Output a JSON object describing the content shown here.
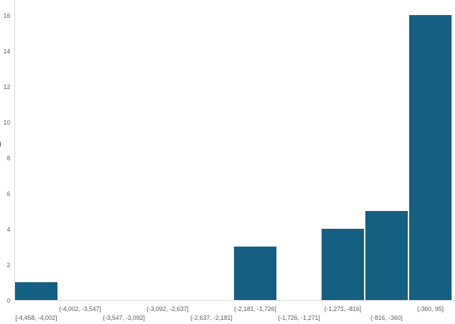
{
  "chart_data": {
    "type": "bar",
    "subtype": "histogram",
    "title": "",
    "xlabel": "",
    "ylabel": "",
    "y_axis_title_fragment": ")",
    "categories": [
      "[-4,458, -4,002]",
      "(-4,002, -3,547]",
      "(-3,547, -3,092]",
      "(-3,092, -2,637]",
      "(-2,637, -2,181]",
      "(-2,181, -1,726]",
      "(-1,726, -1,271]",
      "(-1,271, -816]",
      "(-816, -360]",
      "(-360, 95]"
    ],
    "values": [
      1,
      0,
      0,
      0,
      0,
      3,
      0,
      4,
      5,
      16
    ],
    "y_ticks": [
      0,
      2,
      4,
      6,
      8,
      10,
      12,
      14,
      16
    ],
    "ylim": [
      0,
      16.9
    ],
    "grid": "off",
    "legend": "none",
    "colors": {
      "bar_fill": "#156082",
      "axis_line": "#d9d9d9",
      "tick_label": "#595959",
      "background": "#ffffff"
    }
  }
}
